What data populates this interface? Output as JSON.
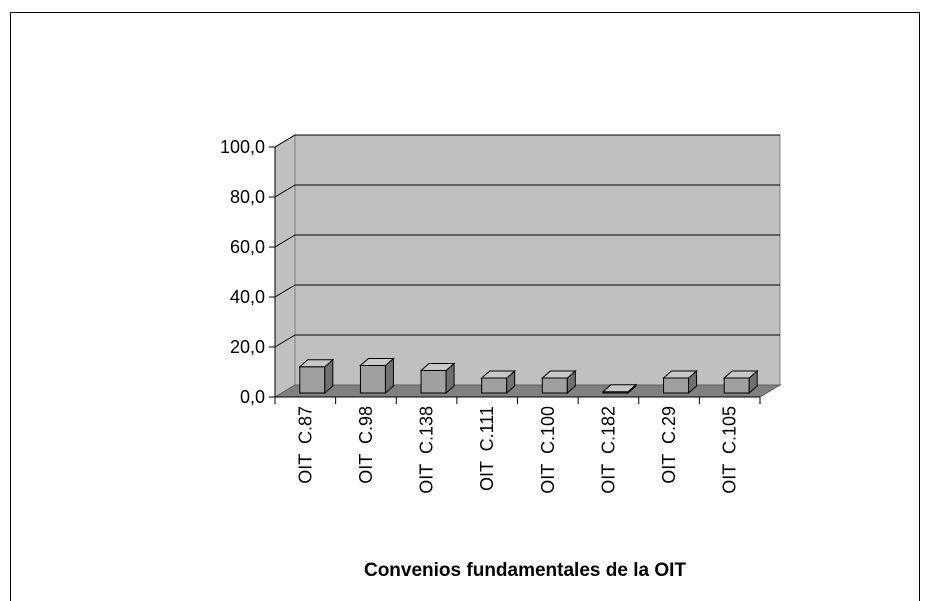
{
  "chart_data": {
    "type": "bar3d",
    "x_label": "Convenios fundamentales de la OIT",
    "categories": [
      "OIT  C.87",
      "OIT  C.98",
      "OIT  C.138",
      "OIT  C.111",
      "OIT  C.100",
      "OIT  C.182",
      "OIT  C.29",
      "OIT  C.105"
    ],
    "values": [
      10.5,
      11,
      9,
      6,
      6,
      0.5,
      6,
      6
    ],
    "color": "#a0a0a0",
    "ylim": [
      0,
      100
    ],
    "yticks": [
      {
        "value": 0,
        "label": "0,0"
      },
      {
        "value": 20,
        "label": "20,0"
      },
      {
        "value": 40,
        "label": "40,0"
      },
      {
        "value": 60,
        "label": "60,0"
      },
      {
        "value": 80,
        "label": "80,0"
      },
      {
        "value": 100,
        "label": "100,0"
      }
    ],
    "grid": true
  }
}
